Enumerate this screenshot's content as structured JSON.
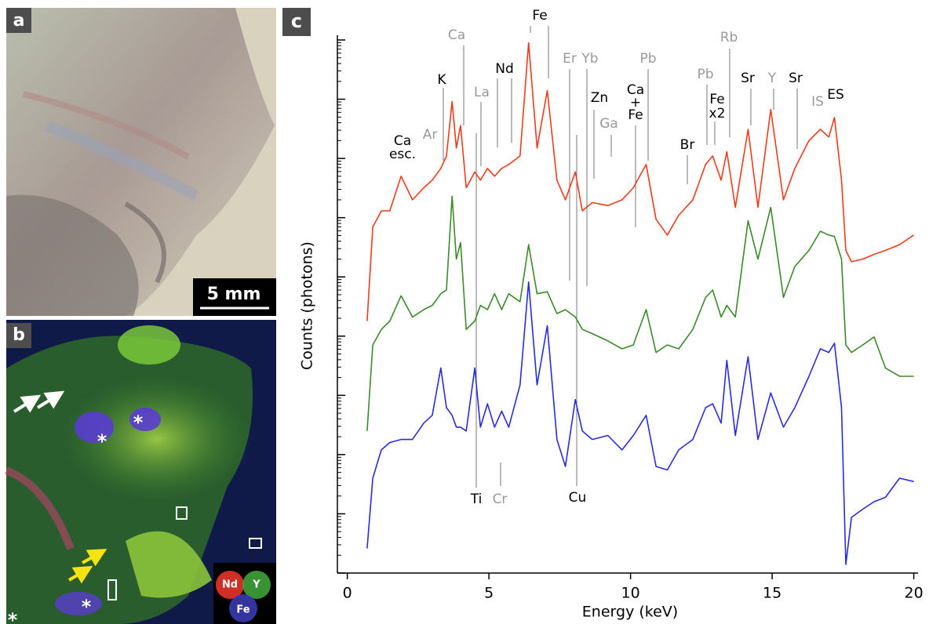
{
  "panels": {
    "a": {
      "label": "a",
      "scale_bar": "5 mm"
    },
    "b": {
      "label": "b",
      "asterisks": [
        "*",
        "*",
        "*",
        "*"
      ],
      "legend": [
        "Nd",
        "Y",
        "Fe"
      ]
    },
    "c": {
      "label": "c"
    }
  },
  "chart_data": {
    "type": "line",
    "x_label": "Energy (keV)",
    "y_label": "Counts (photons)",
    "log_y": true,
    "xlim": [
      -0.35,
      20.15
    ],
    "xticks": [
      0,
      5,
      10,
      15,
      20
    ],
    "ylim": [
      1,
      1200000000
    ],
    "yticks": [
      1,
      10,
      100,
      1000,
      10000,
      100000,
      1000000,
      10000000,
      100000000,
      1000000000
    ],
    "x": [
      0.7,
      0.9,
      1.2,
      1.5,
      1.9,
      2.3,
      2.7,
      3.0,
      3.3,
      3.5,
      3.7,
      3.85,
      4.0,
      4.2,
      4.5,
      4.7,
      4.95,
      5.2,
      5.45,
      5.7,
      6.1,
      6.4,
      6.7,
      7.06,
      7.4,
      7.7,
      8.05,
      8.3,
      8.65,
      9.2,
      9.7,
      10.1,
      10.55,
      10.9,
      11.3,
      11.7,
      12.2,
      12.65,
      12.9,
      13.2,
      13.4,
      13.7,
      14.15,
      14.5,
      14.95,
      15.4,
      15.8,
      16.3,
      16.7,
      17.0,
      17.2,
      17.45,
      17.6,
      17.8,
      18.2,
      18.6,
      19.0,
      19.5,
      20.0
    ],
    "series": [
      {
        "color": "#ee3b1c",
        "values": [
          18000,
          690000,
          1300000,
          1300000,
          5000000,
          2000000,
          3200000,
          4300000,
          6800000,
          11000000,
          91000000,
          15000000,
          36000000,
          3200000,
          5900000,
          4300000,
          6800000,
          5000000,
          6800000,
          7900000,
          11000000,
          900000000,
          15000000,
          140000000,
          4300000,
          2000000,
          5900000,
          1300000,
          1800000,
          1600000,
          2000000,
          3200000,
          7900000,
          940000,
          510000,
          1100000,
          2000000,
          7900000,
          11000000,
          4300000,
          13000000,
          1500000,
          31000000,
          1500000,
          67000000,
          2000000,
          6800000,
          20000000,
          31000000,
          23000000,
          49000000,
          4300000,
          280000,
          180000,
          200000,
          240000,
          280000,
          350000,
          510000
        ]
      },
      {
        "color": "#3a8a2a",
        "values": [
          250,
          7100,
          13000,
          18000,
          48000,
          21000,
          28000,
          33000,
          52000,
          60000,
          2300000,
          200000,
          380000,
          13000,
          18000,
          33000,
          28000,
          52000,
          28000,
          52000,
          38000,
          350000,
          52000,
          56000,
          24000,
          28000,
          21000,
          13000,
          11000,
          8300,
          6100,
          7100,
          28000,
          5300,
          7100,
          6100,
          13000,
          45000,
          60000,
          21000,
          33000,
          21000,
          890000,
          200000,
          1500000,
          45000,
          150000,
          280000,
          590000,
          510000,
          480000,
          200000,
          7100,
          5300,
          7100,
          9700,
          2900,
          2100,
          2100
        ]
      },
      {
        "color": "#2a2ae0",
        "values": [
          2.6,
          40,
          120,
          160,
          180,
          180,
          340,
          460,
          2900,
          620,
          460,
          290,
          290,
          250,
          2900,
          290,
          720,
          290,
          540,
          290,
          1500,
          82000,
          1500,
          15000,
          180,
          63,
          850,
          250,
          180,
          210,
          120,
          210,
          460,
          63,
          55,
          120,
          180,
          620,
          720,
          340,
          3900,
          210,
          4500,
          180,
          1100,
          290,
          620,
          2100,
          6100,
          5300,
          7600,
          620,
          1.4,
          8.7,
          12,
          16,
          19,
          40,
          35
        ]
      }
    ],
    "annotations": [
      {
        "text": "Ca",
        "color": "#000000"
      },
      {
        "text": "esc.",
        "color": "#000000"
      },
      {
        "text": "Ar",
        "color": "#999999"
      },
      {
        "text": "K",
        "color": "#000000"
      },
      {
        "text": "Ca",
        "color": "#999999"
      },
      {
        "text": "La",
        "color": "#999999"
      },
      {
        "text": "Nd",
        "color": "#000000"
      },
      {
        "text": "Fe",
        "color": "#000000"
      },
      {
        "text": "Er",
        "color": "#999999"
      },
      {
        "text": "Yb",
        "color": "#999999"
      },
      {
        "text": "Zn",
        "color": "#000000"
      },
      {
        "text": "Ga",
        "color": "#999999"
      },
      {
        "text": "Ca",
        "color": "#000000"
      },
      {
        "text": "+",
        "color": "#000000"
      },
      {
        "text": "Fe",
        "color": "#000000"
      },
      {
        "text": "Pb",
        "color": "#999999"
      },
      {
        "text": "Br",
        "color": "#000000"
      },
      {
        "text": "Pb",
        "color": "#999999"
      },
      {
        "text": "Fe",
        "color": "#000000"
      },
      {
        "text": "x2",
        "color": "#000000"
      },
      {
        "text": "Rb",
        "color": "#999999"
      },
      {
        "text": "Sr",
        "color": "#000000"
      },
      {
        "text": "Y",
        "color": "#999999"
      },
      {
        "text": "Sr",
        "color": "#000000"
      },
      {
        "text": "IS",
        "color": "#999999"
      },
      {
        "text": "ES",
        "color": "#000000"
      },
      {
        "text": "Ti",
        "color": "#000000"
      },
      {
        "text": "Cr",
        "color": "#999999"
      },
      {
        "text": "Cu",
        "color": "#000000"
      }
    ]
  }
}
